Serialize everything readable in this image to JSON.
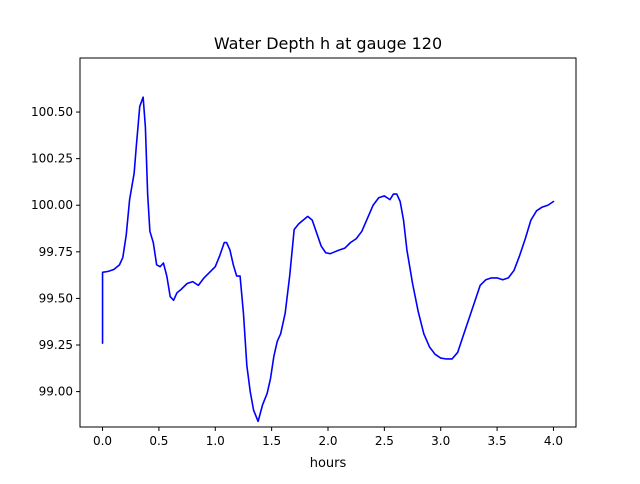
{
  "chart_data": {
    "type": "line",
    "title": "Water Depth h at gauge 120",
    "xlabel": "hours",
    "ylabel": "",
    "xlim": [
      -0.2,
      4.2
    ],
    "ylim": [
      98.81,
      100.79
    ],
    "xticks": [
      0.0,
      0.5,
      1.0,
      1.5,
      2.0,
      2.5,
      3.0,
      3.5,
      4.0
    ],
    "xtick_labels": [
      "0.0",
      "0.5",
      "1.0",
      "1.5",
      "2.0",
      "2.5",
      "3.0",
      "3.5",
      "4.0"
    ],
    "yticks": [
      99.0,
      99.25,
      99.5,
      99.75,
      100.0,
      100.25,
      100.5
    ],
    "ytick_labels": [
      "99.00",
      "99.25",
      "99.50",
      "99.75",
      "100.00",
      "100.25",
      "100.50"
    ],
    "grid": false,
    "legend": "none",
    "series": [
      {
        "color": "#0000ff",
        "x": [
          0.0,
          0.0,
          0.05,
          0.1,
          0.15,
          0.18,
          0.21,
          0.24,
          0.28,
          0.3,
          0.33,
          0.36,
          0.38,
          0.4,
          0.42,
          0.45,
          0.48,
          0.51,
          0.54,
          0.57,
          0.6,
          0.63,
          0.66,
          0.7,
          0.75,
          0.8,
          0.85,
          0.9,
          0.95,
          1.0,
          1.04,
          1.08,
          1.1,
          1.13,
          1.16,
          1.19,
          1.22,
          1.25,
          1.28,
          1.31,
          1.34,
          1.38,
          1.42,
          1.46,
          1.49,
          1.52,
          1.55,
          1.58,
          1.62,
          1.66,
          1.7,
          1.74,
          1.78,
          1.82,
          1.86,
          1.9,
          1.94,
          1.98,
          2.02,
          2.06,
          2.1,
          2.15,
          2.2,
          2.25,
          2.3,
          2.35,
          2.4,
          2.45,
          2.5,
          2.55,
          2.58,
          2.61,
          2.64,
          2.67,
          2.7,
          2.75,
          2.8,
          2.85,
          2.9,
          2.95,
          3.0,
          3.05,
          3.1,
          3.15,
          3.2,
          3.25,
          3.3,
          3.35,
          3.4,
          3.45,
          3.5,
          3.55,
          3.6,
          3.65,
          3.7,
          3.75,
          3.8,
          3.85,
          3.9,
          3.95,
          4.0
        ],
        "y": [
          99.26,
          99.64,
          99.645,
          99.655,
          99.68,
          99.72,
          99.84,
          100.03,
          100.17,
          100.32,
          100.53,
          100.58,
          100.42,
          100.06,
          99.86,
          99.8,
          99.68,
          99.67,
          99.69,
          99.62,
          99.51,
          99.49,
          99.53,
          99.55,
          99.58,
          99.59,
          99.57,
          99.61,
          99.64,
          99.67,
          99.73,
          99.8,
          99.8,
          99.76,
          99.68,
          99.62,
          99.62,
          99.42,
          99.14,
          99.0,
          98.9,
          98.84,
          98.93,
          98.99,
          99.07,
          99.19,
          99.27,
          99.31,
          99.42,
          99.62,
          99.87,
          99.9,
          99.92,
          99.94,
          99.92,
          99.85,
          99.78,
          99.745,
          99.74,
          99.75,
          99.76,
          99.77,
          99.8,
          99.82,
          99.86,
          99.93,
          100.0,
          100.04,
          100.05,
          100.03,
          100.06,
          100.06,
          100.02,
          99.92,
          99.76,
          99.58,
          99.43,
          99.31,
          99.24,
          99.2,
          99.18,
          99.175,
          99.175,
          99.21,
          99.3,
          99.39,
          99.48,
          99.57,
          99.6,
          99.61,
          99.61,
          99.6,
          99.61,
          99.65,
          99.73,
          99.82,
          99.92,
          99.97,
          99.99,
          100.0,
          100.02
        ]
      }
    ]
  }
}
